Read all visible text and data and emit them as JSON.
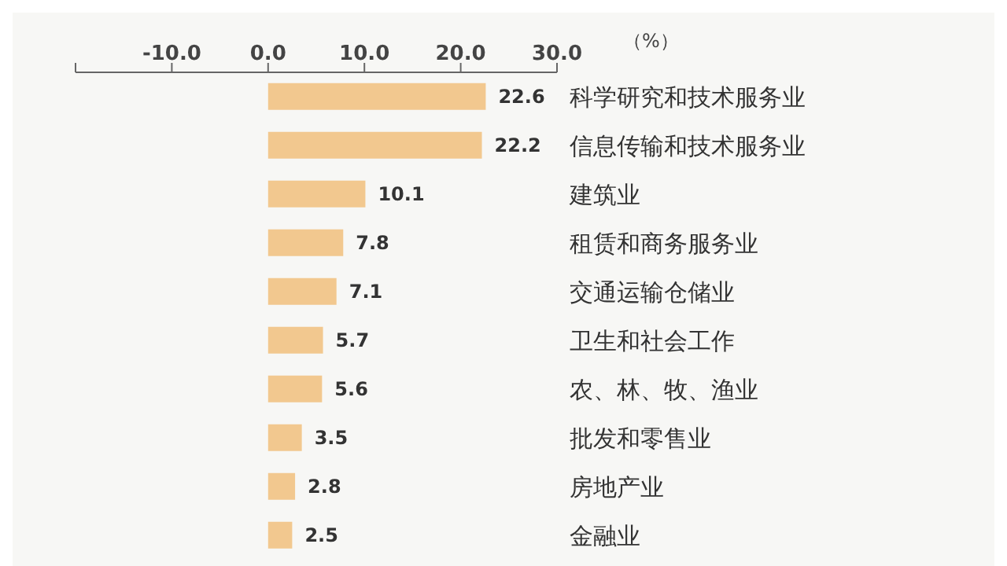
{
  "chart_data": {
    "type": "bar",
    "orientation": "horizontal",
    "xlabel": "（%）",
    "categories": [
      "科学研究和技术服务业",
      "信息传输和技术服务业",
      "建筑业",
      "租赁和商务服务业",
      "交通运输仓储业",
      "卫生和社会工作",
      "农、林、牧、渔业",
      "批发和零售业",
      "房地产业",
      "金融业"
    ],
    "values": [
      22.6,
      22.2,
      10.1,
      7.8,
      7.1,
      5.7,
      5.6,
      3.5,
      2.8,
      2.5
    ],
    "color": "#f2c88f",
    "data_labels": true,
    "xlim": [
      -20,
      30
    ],
    "xticks": [
      {
        "value": -20,
        "label": null
      },
      {
        "value": -10,
        "label": "-10.0"
      },
      {
        "value": 0,
        "label": "0.0"
      },
      {
        "value": 10,
        "label": "10.0"
      },
      {
        "value": 20,
        "label": "20.0"
      },
      {
        "value": 30,
        "label": "30.0"
      }
    ],
    "grid": false
  }
}
